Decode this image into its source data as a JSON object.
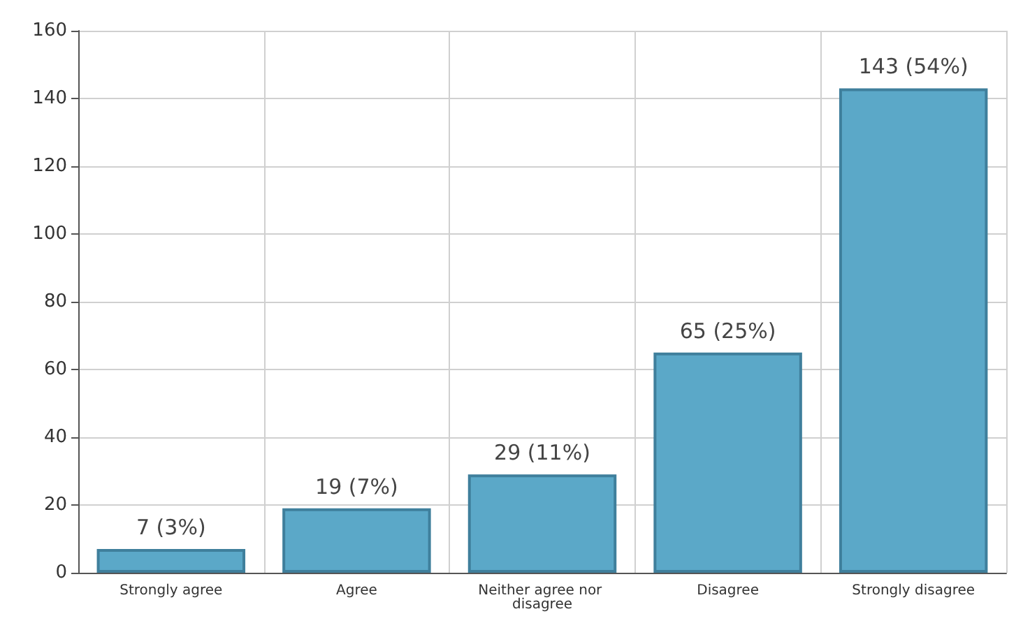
{
  "chart_data": {
    "type": "bar",
    "categories": [
      "Strongly agree",
      "Agree",
      "Neither agree nor disagree",
      "Disagree",
      "Strongly disagree"
    ],
    "values": [
      7,
      19,
      29,
      65,
      143
    ],
    "value_labels": [
      "7 (3%)",
      "19 (7%)",
      "29 (11%)",
      "65 (25%)",
      "143 (54%)"
    ],
    "color": "#5ba8c8",
    "ylim": [
      0,
      160
    ],
    "yticks": [
      0,
      20,
      40,
      60,
      80,
      100,
      120,
      140,
      160
    ],
    "grid": true
  }
}
